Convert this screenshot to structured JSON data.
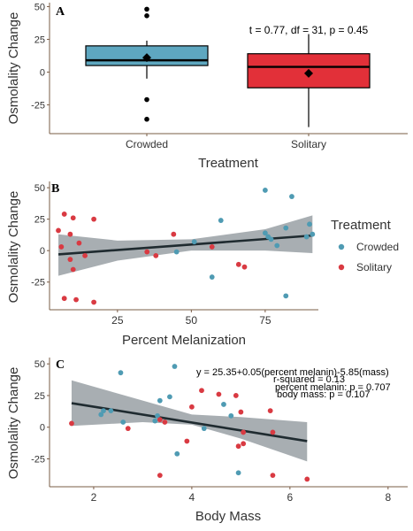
{
  "colors": {
    "crowded": "#4f9bb3",
    "solitary": "#d93a42",
    "axis": "#7a5c46",
    "ribbon": "#a3aaae",
    "fit": "#1f2b30",
    "text": "#333333",
    "box_crowded": "#5ea7c0",
    "box_solitary": "#e23039"
  },
  "chart_data": [
    {
      "type": "box",
      "panel_label": "A",
      "title": "",
      "xlabel": "Treatment",
      "ylabel": "Osmolality Change",
      "categories": [
        "Crowded",
        "Solitary"
      ],
      "ylim": [
        -47,
        53
      ],
      "yticks": [
        -25,
        0,
        25,
        50
      ],
      "yticklabels": [
        "-25",
        "0",
        "25",
        "50"
      ],
      "boxes": [
        {
          "name": "Crowded",
          "q1": 5,
          "median": 9,
          "q3": 20,
          "whisker_low": -5,
          "whisker_high": 24,
          "mean": 11,
          "outliers": [
            48,
            43,
            -21,
            -36
          ]
        },
        {
          "name": "Solitary",
          "q1": -12,
          "median": 4,
          "q3": 14,
          "whisker_low": -42,
          "whisker_high": 29,
          "mean": -1,
          "outliers": []
        }
      ],
      "annotation": "t = 0.77, df = 31, p = 0.45"
    },
    {
      "type": "scatter",
      "panel_label": "B",
      "title": "",
      "xlabel": "Percent Melanization",
      "ylabel": "Osmolality Change",
      "xlim": [
        2,
        93
      ],
      "ylim": [
        -47,
        55
      ],
      "xticks": [
        25,
        50,
        75
      ],
      "xticklabels": [
        "25",
        "50",
        "75"
      ],
      "yticks": [
        -25,
        0,
        25,
        50
      ],
      "yticklabels": [
        "-25",
        "0",
        "25",
        "50"
      ],
      "legend": {
        "title": "Treatment",
        "position": "right",
        "entries": [
          "Crowded",
          "Solitary"
        ]
      },
      "series": [
        {
          "name": "Crowded",
          "points": [
            [
              75,
              48
            ],
            [
              84,
              43
            ],
            [
              60,
              24
            ],
            [
              82,
              18
            ],
            [
              75,
              14
            ],
            [
              90,
              21
            ],
            [
              91,
              13
            ],
            [
              76,
              11
            ],
            [
              77,
              9
            ],
            [
              79,
              4
            ],
            [
              51,
              7
            ],
            [
              45,
              -1
            ],
            [
              57,
              -21
            ],
            [
              82,
              -36
            ],
            [
              89,
              11
            ]
          ]
        },
        {
          "name": "Solitary",
          "points": [
            [
              7,
              29
            ],
            [
              10,
              26
            ],
            [
              17,
              25
            ],
            [
              5,
              16
            ],
            [
              9,
              13
            ],
            [
              12,
              6
            ],
            [
              6,
              3
            ],
            [
              44,
              13
            ],
            [
              57,
              3
            ],
            [
              35,
              -1
            ],
            [
              38,
              -4
            ],
            [
              14,
              -4
            ],
            [
              9,
              -7
            ],
            [
              10,
              -15
            ],
            [
              66,
              -11
            ],
            [
              68,
              -13
            ],
            [
              7,
              -38
            ],
            [
              11,
              -39
            ],
            [
              17,
              -41
            ]
          ]
        }
      ],
      "fit": {
        "x0": 5,
        "y0": -3,
        "x1": 91,
        "y1": 12,
        "band_lower": [
          [
            5,
            -20
          ],
          [
            25,
            -8
          ],
          [
            50,
            0
          ],
          [
            75,
            0
          ],
          [
            91,
            -2
          ]
        ],
        "band_upper": [
          [
            5,
            13
          ],
          [
            25,
            8
          ],
          [
            50,
            9
          ],
          [
            75,
            17
          ],
          [
            91,
            28
          ]
        ]
      }
    },
    {
      "type": "scatter",
      "panel_label": "C",
      "title": "",
      "xlabel": "Body Mass",
      "ylabel": "Osmolality Change",
      "xlim": [
        1.1,
        8.4
      ],
      "ylim": [
        -47,
        55
      ],
      "xticks": [
        2,
        4,
        6,
        8
      ],
      "xticklabels": [
        "2",
        "4",
        "6",
        "8"
      ],
      "yticks": [
        -25,
        0,
        25,
        50
      ],
      "yticklabels": [
        "-25",
        "0",
        "25",
        "50"
      ],
      "series": [
        {
          "name": "Crowded",
          "points": [
            [
              3.65,
              48
            ],
            [
              2.55,
              43
            ],
            [
              3.55,
              24
            ],
            [
              3.35,
              21
            ],
            [
              4.65,
              18
            ],
            [
              2.2,
              13
            ],
            [
              2.35,
              13
            ],
            [
              2.15,
              10
            ],
            [
              3.3,
              9
            ],
            [
              4.8,
              9
            ],
            [
              2.6,
              4
            ],
            [
              4.25,
              -1
            ],
            [
              3.7,
              -21
            ],
            [
              4.95,
              -36
            ],
            [
              3.25,
              5
            ]
          ]
        },
        {
          "name": "Solitary",
          "points": [
            [
              4.2,
              29
            ],
            [
              4.55,
              26
            ],
            [
              4.9,
              25
            ],
            [
              4.0,
              16
            ],
            [
              5.6,
              13
            ],
            [
              5.0,
              12
            ],
            [
              3.35,
              6
            ],
            [
              3.45,
              4
            ],
            [
              1.55,
              3
            ],
            [
              2.7,
              -1
            ],
            [
              5.05,
              -4
            ],
            [
              5.65,
              -4
            ],
            [
              3.9,
              -11
            ],
            [
              5.05,
              -13
            ],
            [
              4.95,
              -15
            ],
            [
              3.35,
              -38
            ],
            [
              5.65,
              -38
            ],
            [
              6.35,
              -41
            ]
          ]
        }
      ],
      "fit": {
        "x0": 1.55,
        "y0": 19,
        "x1": 6.35,
        "y1": -11,
        "band_lower": [
          [
            1.55,
            1
          ],
          [
            3,
            4
          ],
          [
            4,
            2
          ],
          [
            5,
            -9
          ],
          [
            6.35,
            -27
          ]
        ],
        "band_upper": [
          [
            1.55,
            37
          ],
          [
            3,
            21
          ],
          [
            4,
            10
          ],
          [
            5,
            8
          ],
          [
            6.35,
            4
          ]
        ]
      },
      "annotation_lines": [
        "y = 25.35+0.05(percent melanin)-5.85(mass)",
        "r-squared = 0.13",
        "percent melanin: p = 0.707",
        "body mass: p = 0.107"
      ]
    }
  ]
}
